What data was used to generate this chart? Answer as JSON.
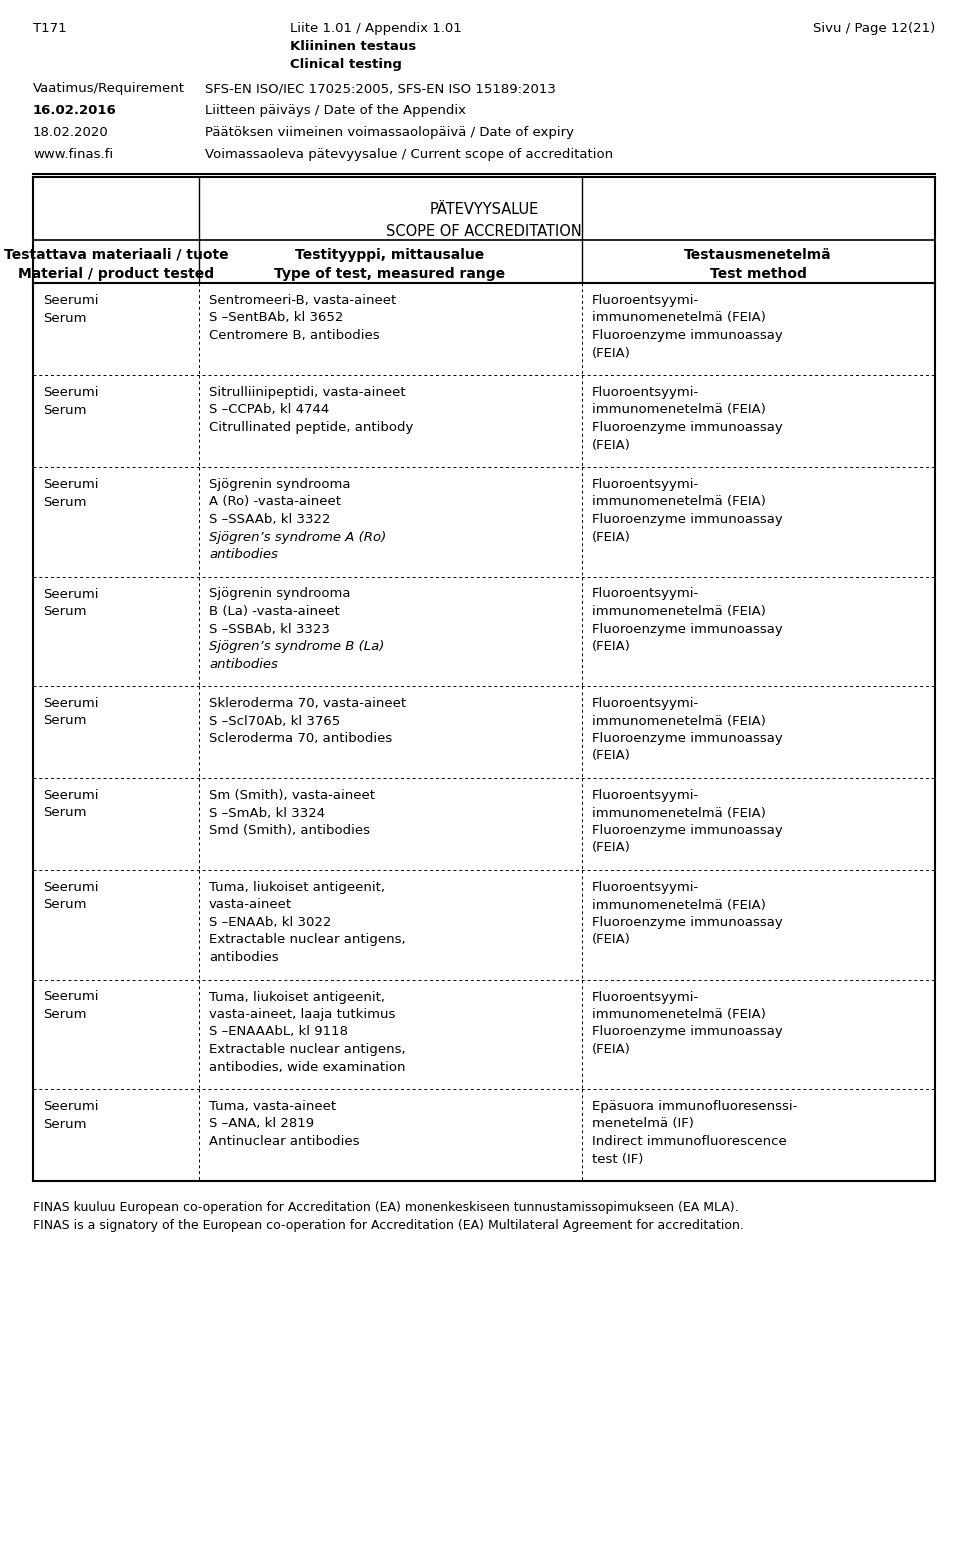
{
  "header_left": "T171",
  "header_center1": "Liite 1.01 / Appendix 1.01",
  "header_center2": "Kliininen testaus",
  "header_center3": "Clinical testing",
  "header_right": "Sivu / Page 12(21)",
  "meta": [
    {
      "label": "Vaatimus/Requirement",
      "bold": false,
      "value": "SFS-EN ISO/IEC 17025:2005, SFS-EN ISO 15189:2013"
    },
    {
      "label": "16.02.2016",
      "bold": true,
      "value": "Liitteen päiväys / Date of the Appendix"
    },
    {
      "label": "18.02.2020",
      "bold": false,
      "value": "Päätöksen viimeinen voimassaolopäivä / Date of expiry"
    },
    {
      "label": "www.finas.fi",
      "bold": false,
      "value": "Voimassaoleva pätevyysalue / Current scope of accreditation"
    }
  ],
  "table_title1": "PÄTEVYYSALUE",
  "table_title2": "SCOPE OF ACCREDITATION",
  "col_header1a": "Testattava materiaali / tuote",
  "col_header1b": "Material / product tested",
  "col_header2a": "Testityyppi, mittausalue",
  "col_header2b": "Type of test, measured range",
  "col_header3a": "Testausmenetelmä",
  "col_header3b": "Test method",
  "rows": [
    {
      "col1": [
        "Seerumi",
        "Serum"
      ],
      "col2": [
        "Sentromeeri-B, vasta-aineet",
        "S –SentBAb, kl 3652",
        "Centromere B, antibodies"
      ],
      "col2_italic": [],
      "col3": [
        "Fluoroentsyymi-",
        "immunomenetelmä (FEIA)",
        "Fluoroenzyme immunoassay",
        "(FEIA)"
      ]
    },
    {
      "col1": [
        "Seerumi",
        "Serum"
      ],
      "col2": [
        "Sitrulliinipeptidi, vasta-aineet",
        "S –CCPAb, kl 4744",
        "Citrullinated peptide, antibody"
      ],
      "col2_italic": [],
      "col3": [
        "Fluoroentsyymi-",
        "immunomenetelmä (FEIA)",
        "Fluoroenzyme immunoassay",
        "(FEIA)"
      ]
    },
    {
      "col1": [
        "Seerumi",
        "Serum"
      ],
      "col2": [
        "Sjögrenin syndrooma",
        "A (Ro) -vasta-aineet",
        "S –SSAAb, kl 3322",
        "Sjögren’s syndrome A (Ro)",
        "antibodies"
      ],
      "col2_italic": [
        3,
        4
      ],
      "col3": [
        "Fluoroentsyymi-",
        "immunomenetelmä (FEIA)",
        "Fluoroenzyme immunoassay",
        "(FEIA)"
      ]
    },
    {
      "col1": [
        "Seerumi",
        "Serum"
      ],
      "col2": [
        "Sjögrenin syndrooma",
        "B (La) -vasta-aineet",
        "S –SSBAb, kl 3323",
        "Sjögren’s syndrome B (La)",
        "antibodies"
      ],
      "col2_italic": [
        3,
        4
      ],
      "col3": [
        "Fluoroentsyymi-",
        "immunomenetelmä (FEIA)",
        "Fluoroenzyme immunoassay",
        "(FEIA)"
      ]
    },
    {
      "col1": [
        "Seerumi",
        "Serum"
      ],
      "col2": [
        "Skleroderma 70, vasta-aineet",
        "S –Scl70Ab, kl 3765",
        "Scleroderma 70, antibodies"
      ],
      "col2_italic": [],
      "col3": [
        "Fluoroentsyymi-",
        "immunomenetelmä (FEIA)",
        "Fluoroenzyme immunoassay",
        "(FEIA)"
      ]
    },
    {
      "col1": [
        "Seerumi",
        "Serum"
      ],
      "col2": [
        "Sm (Smith), vasta-aineet",
        "S –SmAb, kl 3324",
        "Smd (Smith), antibodies"
      ],
      "col2_italic": [],
      "col3": [
        "Fluoroentsyymi-",
        "immunomenetelmä (FEIA)",
        "Fluoroenzyme immunoassay",
        "(FEIA)"
      ]
    },
    {
      "col1": [
        "Seerumi",
        "Serum"
      ],
      "col2": [
        "Tuma, liukoiset antigeenit,",
        "vasta-aineet",
        "S –ENAAb, kl 3022",
        "Extractable nuclear antigens,",
        "antibodies"
      ],
      "col2_italic": [],
      "col3": [
        "Fluoroentsyymi-",
        "immunomenetelmä (FEIA)",
        "Fluoroenzyme immunoassay",
        "(FEIA)"
      ]
    },
    {
      "col1": [
        "Seerumi",
        "Serum"
      ],
      "col2": [
        "Tuma, liukoiset antigeenit,",
        "vasta-aineet, laaja tutkimus",
        "S –ENAAAbL, kl 9118",
        "Extractable nuclear antigens,",
        "antibodies, wide examination"
      ],
      "col2_italic": [],
      "col3": [
        "Fluoroentsyymi-",
        "immunomenetelmä (FEIA)",
        "Fluoroenzyme immunoassay",
        "(FEIA)"
      ]
    },
    {
      "col1": [
        "Seerumi",
        "Serum"
      ],
      "col2": [
        "Tuma, vasta-aineet",
        "S –ANA, kl 2819",
        "Antinuclear antibodies"
      ],
      "col2_italic": [],
      "col3": [
        "Epäsuora immunofluoresenssi-",
        "menetelmä (IF)",
        "Indirect immunofluorescence",
        "test (IF)"
      ]
    }
  ],
  "footer1": "FINAS kuuluu European co-operation for Accreditation (EA) monenkeskiseen tunnustamissopimukseen (EA MLA).",
  "footer2": "FINAS is a signatory of the European co-operation for Accreditation (EA) Multilateral Agreement for accreditation."
}
